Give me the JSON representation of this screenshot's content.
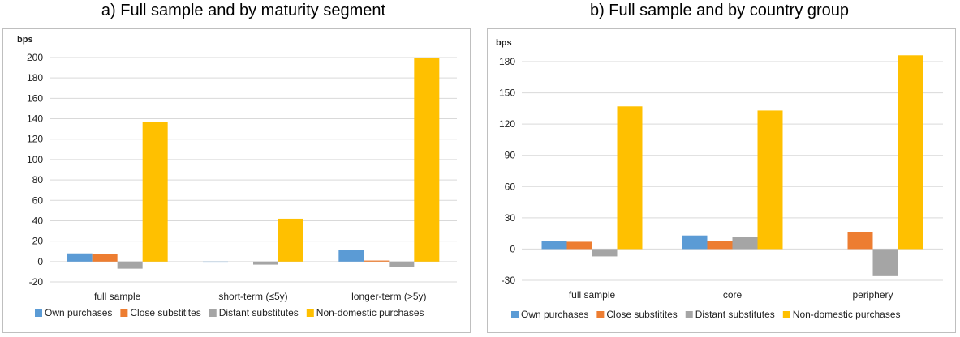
{
  "colors": {
    "own": "#5B9BD5",
    "close": "#ED7D31",
    "distant": "#A5A5A5",
    "nondomestic": "#FFC000",
    "grid": "#D9D9D9",
    "frame": "#BFBFBF"
  },
  "chart_data": [
    {
      "type": "bar",
      "title": "a) Full sample and by maturity segment",
      "ylabel": "bps",
      "ylim": [
        -20,
        200
      ],
      "yticks": [
        -20,
        0,
        20,
        40,
        60,
        80,
        100,
        120,
        140,
        160,
        180,
        200
      ],
      "grid": true,
      "legend": "bottom",
      "categories": [
        "full sample",
        "short-term (≤5y)",
        "longer-term (>5y)"
      ],
      "series": [
        {
          "name": "Own purchases",
          "values": [
            8,
            -1,
            11
          ]
        },
        {
          "name": "Close substitites",
          "values": [
            7,
            0,
            1
          ]
        },
        {
          "name": "Distant substitutes",
          "values": [
            -7,
            -3,
            -5
          ]
        },
        {
          "name": "Non-domestic purchases",
          "values": [
            137,
            42,
            200
          ]
        }
      ]
    },
    {
      "type": "bar",
      "title": "b) Full sample and by country group",
      "ylabel": "bps",
      "ylim": [
        -30,
        180
      ],
      "yticks": [
        -30,
        0,
        30,
        60,
        90,
        120,
        150,
        180
      ],
      "grid": true,
      "legend": "bottom",
      "categories": [
        "full sample",
        "core",
        "periphery"
      ],
      "series": [
        {
          "name": "Own purchases",
          "values": [
            8,
            13,
            0
          ]
        },
        {
          "name": "Close substitites",
          "values": [
            7,
            8,
            16
          ]
        },
        {
          "name": "Distant substitutes",
          "values": [
            -7,
            12,
            -26
          ]
        },
        {
          "name": "Non-domestic purchases",
          "values": [
            137,
            133,
            186
          ]
        }
      ]
    }
  ]
}
